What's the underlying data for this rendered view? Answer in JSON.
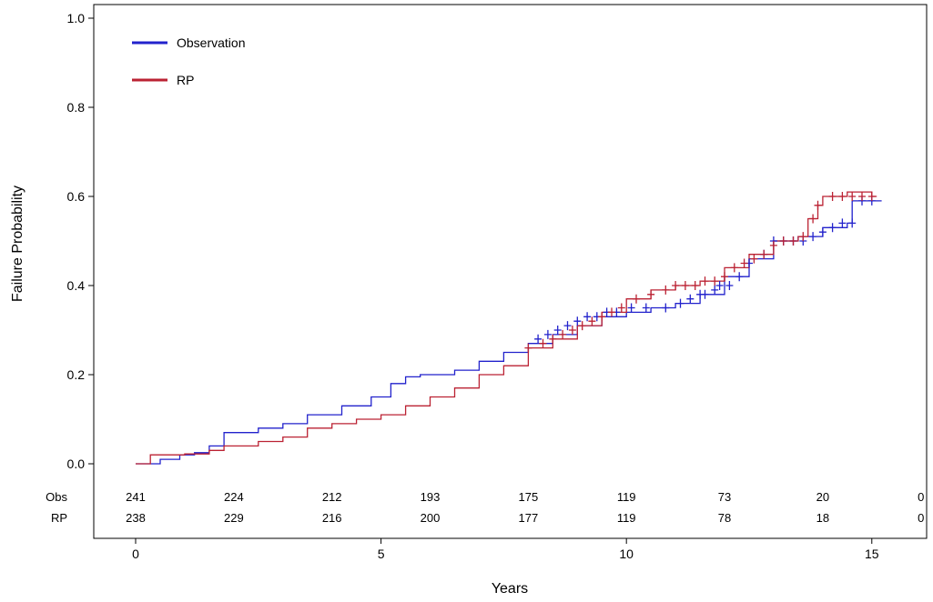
{
  "chart_data": {
    "type": "line",
    "ylabel": "Failure Probability",
    "xlabel": "Years",
    "xlim": [
      0,
      16
    ],
    "ylim": [
      0,
      1.0
    ],
    "x_ticks": [
      0,
      5,
      10,
      15
    ],
    "x_tick_labels": [
      "0",
      "5",
      "10",
      "15"
    ],
    "y_ticks": [
      0,
      0.2,
      0.4,
      0.6,
      0.8,
      1.0
    ],
    "y_tick_labels": [
      "0.0",
      "0.2",
      "0.4",
      "0.6",
      "0.8",
      "1.0"
    ],
    "grid": false,
    "legend": {
      "placement": "top-left"
    },
    "series": [
      {
        "name": "Observation",
        "color": "#2222cc",
        "step": true,
        "x": [
          0,
          0.5,
          0.9,
          1.2,
          1.5,
          1.8,
          2.5,
          3.0,
          3.5,
          4.2,
          4.8,
          5.2,
          5.5,
          5.8,
          6.5,
          7.0,
          7.5,
          8.0,
          8.5,
          9.0,
          9.5,
          10.0,
          10.5,
          11.0,
          11.5,
          12.0,
          12.5,
          13.0,
          13.5,
          14.0,
          14.5,
          14.6,
          15.2
        ],
        "y": [
          0,
          0.01,
          0.02,
          0.025,
          0.04,
          0.07,
          0.08,
          0.09,
          0.11,
          0.13,
          0.15,
          0.18,
          0.195,
          0.2,
          0.21,
          0.23,
          0.25,
          0.27,
          0.29,
          0.31,
          0.33,
          0.34,
          0.35,
          0.36,
          0.38,
          0.42,
          0.46,
          0.5,
          0.51,
          0.53,
          0.54,
          0.59,
          0.59
        ]
      },
      {
        "name": "RP",
        "color": "#bb2233",
        "step": true,
        "x": [
          0,
          0.3,
          1.0,
          1.5,
          1.8,
          2.5,
          3.0,
          3.5,
          4.0,
          4.5,
          5.0,
          5.5,
          6.0,
          6.5,
          7.0,
          7.5,
          8.0,
          8.5,
          9.0,
          9.5,
          10.0,
          10.5,
          11.0,
          11.5,
          12.0,
          12.5,
          13.0,
          13.5,
          13.7,
          13.9,
          14.0,
          14.5,
          15.0,
          15.1
        ],
        "y": [
          0,
          0.02,
          0.022,
          0.03,
          0.04,
          0.05,
          0.06,
          0.08,
          0.09,
          0.1,
          0.11,
          0.13,
          0.15,
          0.17,
          0.2,
          0.22,
          0.26,
          0.28,
          0.31,
          0.34,
          0.37,
          0.39,
          0.4,
          0.41,
          0.44,
          0.47,
          0.5,
          0.51,
          0.55,
          0.58,
          0.6,
          0.61,
          0.6,
          0.6
        ]
      }
    ],
    "censor_marks": [
      {
        "series": "Observation",
        "x": [
          8.2,
          8.4,
          8.6,
          8.8,
          9.0,
          9.2,
          9.4,
          9.6,
          9.8,
          10.1,
          10.4,
          10.8,
          11.1,
          11.3,
          11.5,
          11.6,
          11.8,
          11.9,
          12.1,
          12.3,
          12.5,
          12.8,
          13.0,
          13.2,
          13.4,
          13.6,
          13.8,
          14.0,
          14.2,
          14.4,
          14.6,
          14.8,
          15.0
        ],
        "y": [
          0.28,
          0.29,
          0.3,
          0.31,
          0.32,
          0.33,
          0.33,
          0.34,
          0.34,
          0.35,
          0.35,
          0.35,
          0.36,
          0.37,
          0.38,
          0.38,
          0.39,
          0.4,
          0.4,
          0.42,
          0.45,
          0.47,
          0.5,
          0.5,
          0.5,
          0.5,
          0.51,
          0.52,
          0.53,
          0.54,
          0.54,
          0.59,
          0.59
        ]
      },
      {
        "series": "RP",
        "x": [
          8.0,
          8.3,
          8.5,
          8.7,
          8.9,
          9.1,
          9.3,
          9.5,
          9.7,
          9.9,
          10.2,
          10.5,
          10.8,
          11.0,
          11.2,
          11.4,
          11.6,
          11.8,
          12.0,
          12.2,
          12.4,
          12.6,
          12.8,
          13.0,
          13.2,
          13.4,
          13.6,
          13.8,
          13.9,
          14.2,
          14.4,
          14.6,
          14.8,
          15.0
        ],
        "y": [
          0.26,
          0.27,
          0.28,
          0.29,
          0.3,
          0.31,
          0.32,
          0.33,
          0.34,
          0.35,
          0.37,
          0.38,
          0.39,
          0.4,
          0.4,
          0.4,
          0.41,
          0.41,
          0.42,
          0.44,
          0.45,
          0.46,
          0.47,
          0.49,
          0.5,
          0.5,
          0.51,
          0.55,
          0.58,
          0.6,
          0.6,
          0.6,
          0.6,
          0.6
        ]
      }
    ],
    "risk_table": {
      "times": [
        0,
        2,
        4,
        6,
        8,
        10,
        12,
        14,
        16
      ],
      "rows": [
        {
          "label": "Obs",
          "counts": [
            "241",
            "224",
            "212",
            "193",
            "175",
            "119",
            "73",
            "20",
            "0"
          ]
        },
        {
          "label": "RP",
          "counts": [
            "238",
            "229",
            "216",
            "200",
            "177",
            "119",
            "78",
            "18",
            "0"
          ]
        }
      ]
    }
  }
}
